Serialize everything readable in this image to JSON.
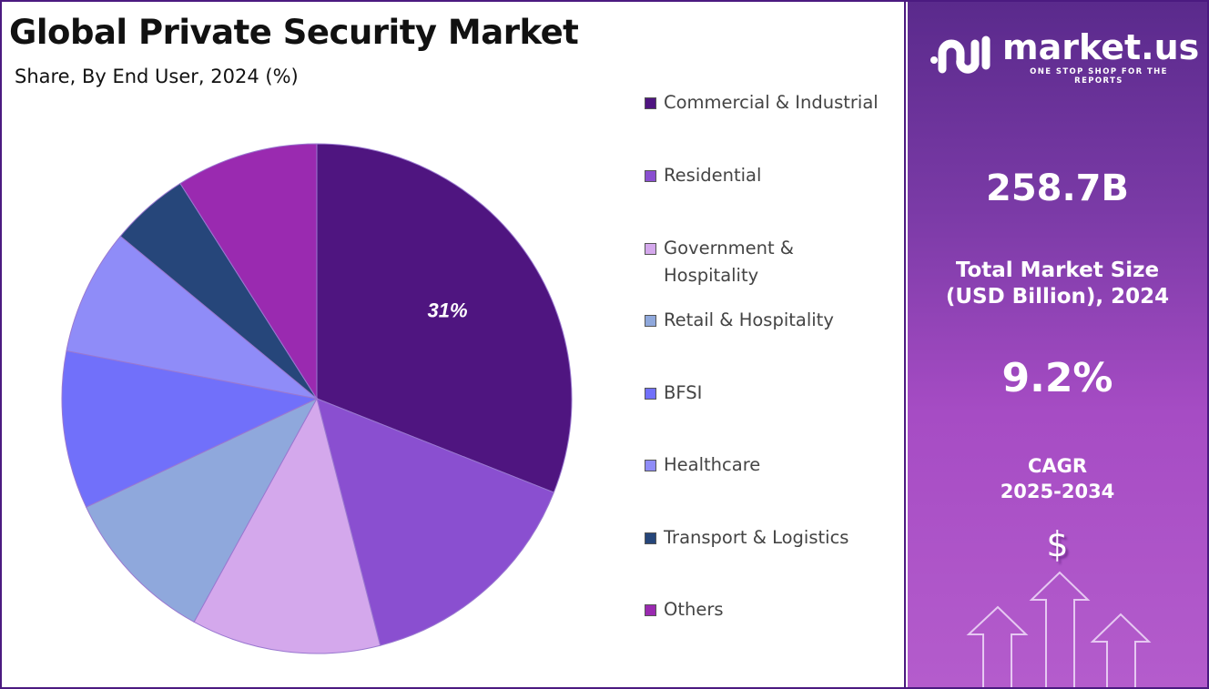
{
  "header": {
    "title": "Global Private Security Market",
    "subtitle": "Share, By End User, 2024 (%)"
  },
  "chart_data": {
    "type": "pie",
    "title": "Global Private Security Market",
    "subtitle": "Share, By End User, 2024 (%)",
    "categories": [
      "Commercial & Industrial",
      "Residential",
      "Government & Hospitality",
      "Retail & Hospitality",
      "BFSI",
      "Healthcare",
      "Transport & Logistics",
      "Others"
    ],
    "values": [
      31,
      15,
      12,
      10,
      10,
      8,
      5,
      9
    ],
    "colors": [
      "#4f1580",
      "#8a4fd0",
      "#d4a8ec",
      "#8fa8dc",
      "#7170fa",
      "#8f8cf8",
      "#26467a",
      "#9a2ab0"
    ],
    "data_labels": [
      {
        "category": "Commercial & Industrial",
        "text": "31%"
      }
    ],
    "legend_position": "right",
    "start_angle": "top, clockwise"
  },
  "legend": [
    {
      "label": "Commercial &  Industrial"
    },
    {
      "label": "Residential"
    },
    {
      "label": "Government &"
    },
    {
      "label": "Hospitality"
    },
    {
      "label": "Retail & Hospitality"
    },
    {
      "label": "BFSI"
    },
    {
      "label": "Healthcare"
    },
    {
      "label": "Transport & Logistics"
    },
    {
      "label": "Others"
    }
  ],
  "sidebar": {
    "logo_text": "market.us",
    "logo_tagline": "ONE STOP SHOP FOR THE REPORTS",
    "market_size": "258.7B",
    "market_size_label_1": "Total Market Size",
    "market_size_label_2": "(USD Billion), 2024",
    "cagr": "9.2%",
    "cagr_label_1": "CAGR",
    "cagr_label_2": "2025-2034",
    "dollar_icon": "$",
    "icons": [
      "dollar-icon",
      "growth-arrows-icon"
    ]
  }
}
